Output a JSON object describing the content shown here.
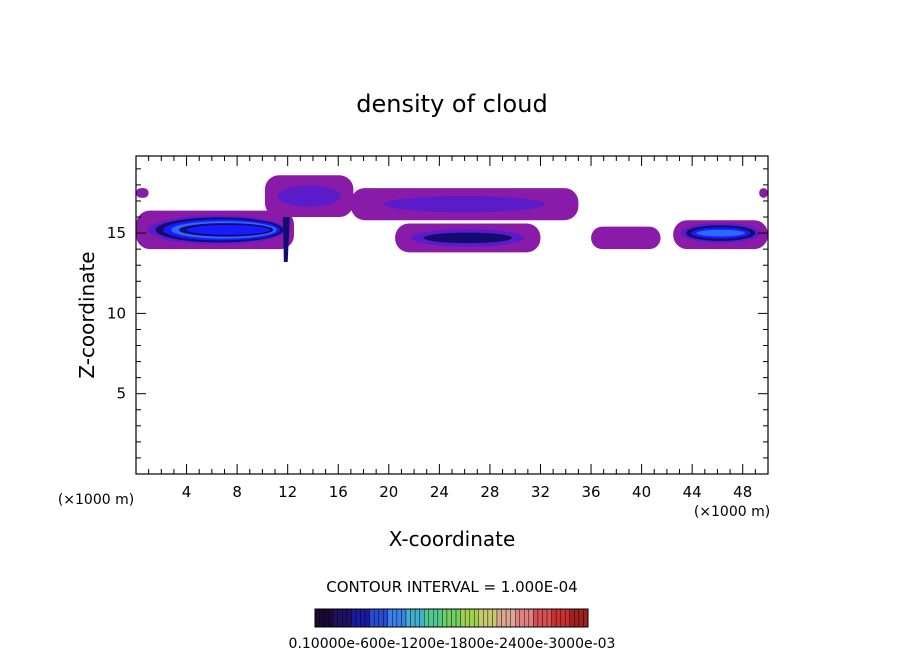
{
  "chart_data": {
    "type": "heatmap",
    "title": "density of cloud",
    "xlabel": "X-coordinate",
    "ylabel": "Z-coordinate",
    "x_unit": "(×1000 m)",
    "y_unit": "(×1000 m)",
    "xlim": [
      0,
      50
    ],
    "ylim": [
      0,
      19.8
    ],
    "x_ticks": [
      4,
      8,
      12,
      16,
      20,
      24,
      28,
      32,
      36,
      40,
      44,
      48
    ],
    "y_ticks": [
      5,
      10,
      15
    ],
    "contour_interval_text": "CONTOUR INTERVAL = 1.000E-04",
    "colorbar_labels_text": "0.10000e-600e-1200e-1800e-2400e-3000e-03",
    "colors": {
      "low": "#8a1aa8",
      "mid": "#5a1cc8",
      "high": "#1a1aff",
      "peak": "#2a6aff",
      "dark": "#140a70"
    },
    "regions": [
      {
        "name": "main-cloud-west",
        "x": [
          0,
          12.5
        ],
        "z": [
          14.0,
          16.4
        ],
        "core_z": 15.2,
        "peak_density": 0.0008
      },
      {
        "name": "upper-cloud-west",
        "x": [
          10.2,
          17.2
        ],
        "z": [
          16.0,
          18.6
        ],
        "peak_density": 0.0002
      },
      {
        "name": "upper-cloud-mid",
        "x": [
          17.0,
          35.0
        ],
        "z": [
          15.8,
          17.8
        ],
        "peak_density": 0.0002
      },
      {
        "name": "lower-cloud-mid",
        "x": [
          20.5,
          32.0
        ],
        "z": [
          13.8,
          15.6
        ],
        "peak_density": 0.0003
      },
      {
        "name": "small-cloud-36",
        "x": [
          36.0,
          41.5
        ],
        "z": [
          14.0,
          15.4
        ],
        "peak_density": 0.0001
      },
      {
        "name": "cloud-east",
        "x": [
          42.5,
          50
        ],
        "z": [
          14.0,
          15.8
        ],
        "core_z": 15.0,
        "peak_density": 0.0005
      },
      {
        "name": "cloud-west-top",
        "x": [
          0,
          1.0
        ],
        "z": [
          17.2,
          17.8
        ],
        "peak_density": 0.0001
      },
      {
        "name": "cloud-east-top",
        "x": [
          49.3,
          50
        ],
        "z": [
          17.2,
          17.8
        ],
        "peak_density": 0.0001
      }
    ]
  }
}
